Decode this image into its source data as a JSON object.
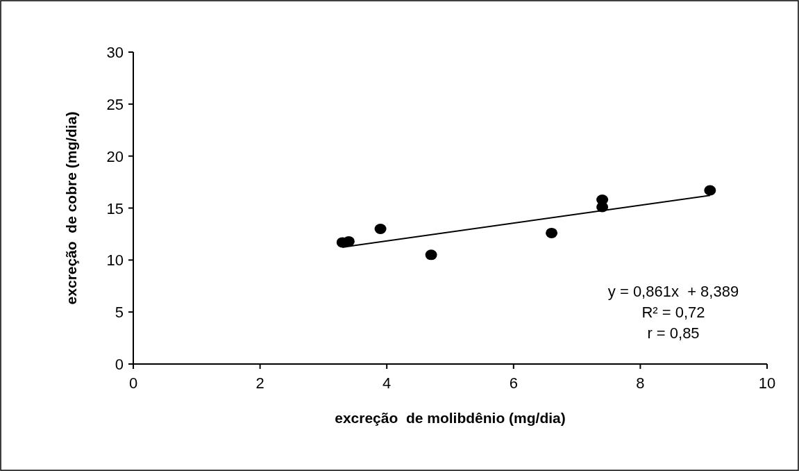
{
  "chart_data": {
    "type": "scatter",
    "xlabel": "excreção  de molibdênio (mg/dia)",
    "ylabel": "excreção  de cobre (mg/dia)",
    "xlim": [
      0,
      10
    ],
    "xticks": [
      0,
      2,
      4,
      6,
      8,
      10
    ],
    "ylim": [
      0,
      30
    ],
    "yticks": [
      0,
      5,
      10,
      15,
      20,
      25,
      30
    ],
    "grid": false,
    "marker": "circle",
    "series": [
      {
        "color": "#000000",
        "x": [
          3.3,
          3.4,
          3.9,
          4.7,
          6.6,
          7.4,
          7.4,
          9.1
        ],
        "values": [
          11.7,
          11.8,
          13.0,
          10.5,
          12.6,
          15.8,
          15.1,
          16.7
        ]
      },
      {
        "type": "line",
        "color": "#000000",
        "marker": "none",
        "x": [
          3.3,
          9.1
        ],
        "values": [
          11.23,
          16.22
        ]
      }
    ],
    "annotations": [
      "y = 0,861x  + 8,389",
      "R² = 0,72",
      "r = 0,85"
    ]
  }
}
